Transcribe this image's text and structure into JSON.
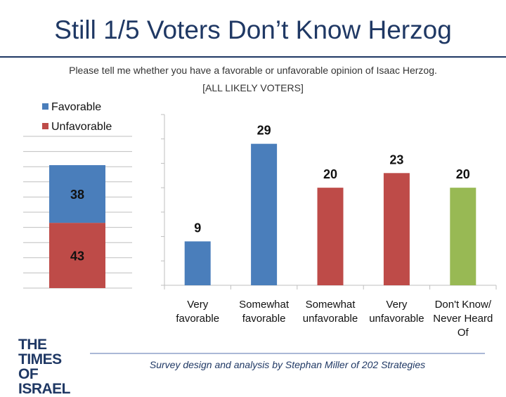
{
  "title": "Still 1/5 Voters Don’t Know Herzog",
  "subtitle": "Please tell me whether you have a favorable or unfavorable opinion of Isaac Herzog.",
  "subtitle2": "[ALL LIKELY VOTERS]",
  "logo": {
    "line1": "THE TIMES",
    "line2": "OF ISRAEL"
  },
  "footer": "Survey design and analysis by Stephan Miller of 202 Strategies",
  "chart_data": [
    {
      "type": "bar",
      "stacked": true,
      "legend_position": "top-left",
      "categories": [
        ""
      ],
      "series": [
        {
          "name": "Favorable",
          "values": [
            38
          ],
          "color": "#4a7ebb"
        },
        {
          "name": "Unfavorable",
          "values": [
            43
          ],
          "color": "#be4b48"
        }
      ],
      "ylim": [
        0,
        100
      ],
      "grid": true
    },
    {
      "type": "bar",
      "categories": [
        [
          "Very",
          "favorable"
        ],
        [
          "Somewhat",
          "favorable"
        ],
        [
          "Somewhat",
          "unfavorable"
        ],
        [
          "Very",
          "unfavorable"
        ],
        [
          "Don't Know/",
          "Never Heard",
          "Of"
        ]
      ],
      "values": [
        9,
        29,
        20,
        23,
        20
      ],
      "colors": [
        "#4a7ebb",
        "#4a7ebb",
        "#be4b48",
        "#be4b48",
        "#98b954"
      ],
      "ylim": [
        0,
        35
      ],
      "grid": false
    }
  ]
}
